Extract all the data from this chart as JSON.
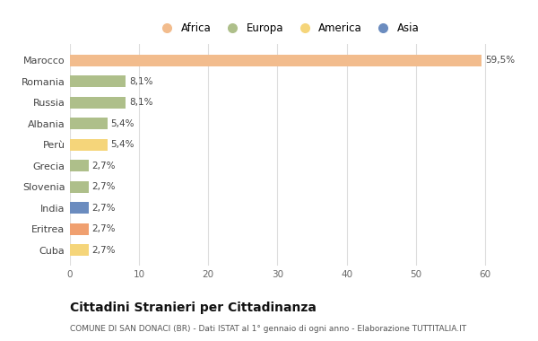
{
  "countries": [
    "Marocco",
    "Romania",
    "Russia",
    "Albania",
    "Perù",
    "Grecia",
    "Slovenia",
    "India",
    "Eritrea",
    "Cuba"
  ],
  "values": [
    59.5,
    8.1,
    8.1,
    5.4,
    5.4,
    2.7,
    2.7,
    2.7,
    2.7,
    2.7
  ],
  "labels": [
    "59,5%",
    "8,1%",
    "8,1%",
    "5,4%",
    "5,4%",
    "2,7%",
    "2,7%",
    "2,7%",
    "2,7%",
    "2,7%"
  ],
  "colors": [
    "#F2BC8D",
    "#AEBF8A",
    "#AEBF8A",
    "#AEBF8A",
    "#F5D57A",
    "#AEBF8A",
    "#AEBF8A",
    "#6B8CBF",
    "#F0A070",
    "#F5D57A"
  ],
  "legend": [
    {
      "label": "Africa",
      "color": "#F2BC8D"
    },
    {
      "label": "Europa",
      "color": "#AEBF8A"
    },
    {
      "label": "America",
      "color": "#F5D57A"
    },
    {
      "label": "Asia",
      "color": "#6B8CBF"
    }
  ],
  "xlim": [
    0,
    63
  ],
  "xticks": [
    0,
    10,
    20,
    30,
    40,
    50,
    60
  ],
  "title1": "Cittadini Stranieri per Cittadinanza",
  "title2": "COMUNE DI SAN DONACI (BR) - Dati ISTAT al 1° gennaio di ogni anno - Elaborazione TUTTITALIA.IT",
  "background_color": "#ffffff",
  "grid_color": "#dddddd",
  "bar_height": 0.55
}
